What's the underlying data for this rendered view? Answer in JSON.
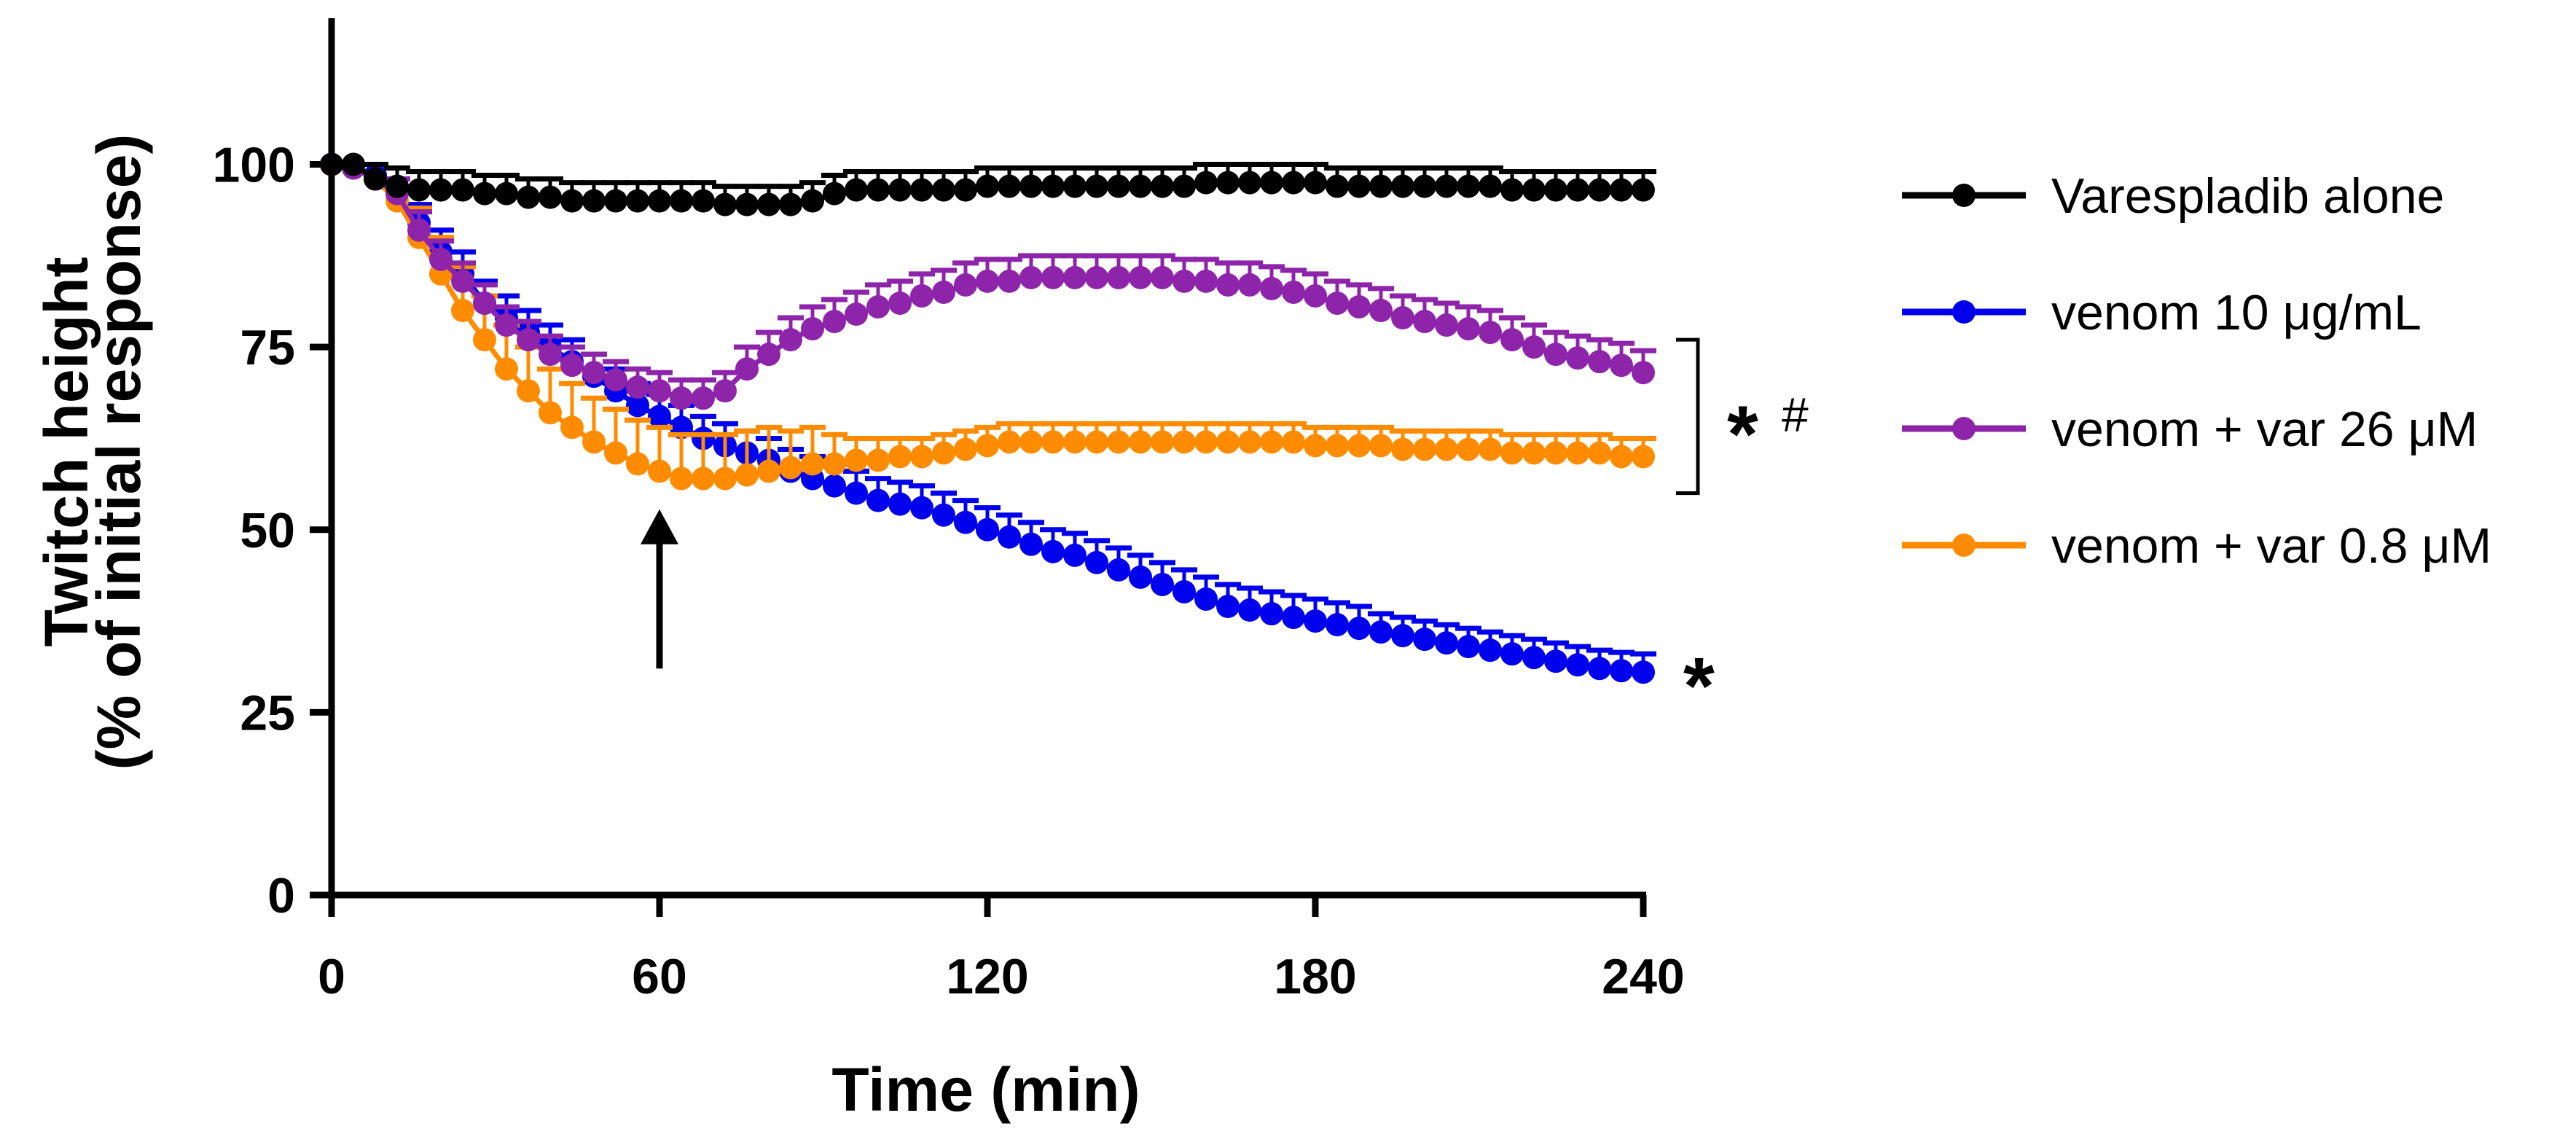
{
  "chart_data": {
    "type": "line",
    "title": "",
    "xlabel": "Time (min)",
    "ylabel": "Twitch height",
    "ylabel2": "(% of initial response)",
    "xlim": [
      0,
      240
    ],
    "ylim": [
      0,
      120
    ],
    "xticks": [
      0,
      60,
      120,
      180,
      240
    ],
    "yticks": [
      0,
      25,
      50,
      75,
      100
    ],
    "grid": false,
    "legend_position": "right",
    "x": [
      0,
      4,
      8,
      12,
      16,
      20,
      24,
      28,
      32,
      36,
      40,
      44,
      48,
      52,
      56,
      60,
      64,
      68,
      72,
      76,
      80,
      84,
      88,
      92,
      96,
      100,
      104,
      108,
      112,
      116,
      120,
      124,
      128,
      132,
      136,
      140,
      144,
      148,
      152,
      156,
      160,
      164,
      168,
      172,
      176,
      180,
      184,
      188,
      192,
      196,
      200,
      204,
      208,
      212,
      216,
      220,
      224,
      228,
      232,
      236,
      240
    ],
    "series": [
      {
        "name": "Varespladib alone",
        "color": "#000000",
        "values": [
          100,
          100,
          98,
          97,
          96.5,
          96.5,
          96.5,
          96,
          96,
          95.5,
          95.5,
          95,
          95,
          95,
          95,
          95,
          95,
          95,
          94.5,
          94.5,
          94.5,
          94.5,
          95,
          96,
          96.5,
          96.5,
          96.5,
          96.5,
          96.5,
          96.5,
          97,
          97,
          97,
          97,
          97,
          97,
          97,
          97,
          97,
          97,
          97.5,
          97.5,
          97.5,
          97.5,
          97.5,
          97.5,
          97,
          97,
          97,
          97,
          97,
          97,
          97,
          97,
          96.5,
          96.5,
          96.5,
          96.5,
          96.5,
          96.5,
          96.5
        ],
        "errors": [
          0,
          0,
          2,
          2.5,
          2.5,
          2.5,
          2.5,
          2.5,
          2.5,
          2.5,
          2.5,
          2.5,
          2.5,
          2.5,
          2.5,
          2.5,
          2.5,
          2.5,
          2.5,
          2.5,
          2.5,
          2.5,
          2.5,
          2.5,
          2.5,
          2.5,
          2.5,
          2.5,
          2.5,
          2.5,
          2.5,
          2.5,
          2.5,
          2.5,
          2.5,
          2.5,
          2.5,
          2.5,
          2.5,
          2.5,
          2.5,
          2.5,
          2.5,
          2.5,
          2.5,
          2.5,
          2.5,
          2.5,
          2.5,
          2.5,
          2.5,
          2.5,
          2.5,
          2.5,
          2.5,
          2.5,
          2.5,
          2.5,
          2.5,
          2.5,
          2.5
        ]
      },
      {
        "name": "venom 10 μg/mL",
        "color": "#0000ee",
        "values": [
          100,
          99.5,
          98.5,
          96,
          92,
          88,
          85,
          81,
          79,
          77,
          75,
          73,
          71,
          69,
          67,
          65.5,
          64,
          62.5,
          61.5,
          60.5,
          59.5,
          58,
          57,
          56,
          55,
          54,
          53.5,
          53,
          52,
          51,
          50,
          49,
          48,
          47,
          46.5,
          45.5,
          44.5,
          43.5,
          42.5,
          41.5,
          40.5,
          39.5,
          39,
          38.5,
          38,
          37.5,
          37,
          36.5,
          36,
          35.5,
          35,
          34.5,
          34,
          33.5,
          33,
          32.5,
          32,
          31.5,
          31,
          30.7,
          30.5
        ],
        "errors": [
          0,
          0,
          0,
          2,
          2.5,
          3,
          3,
          3,
          3,
          3,
          3,
          3,
          3,
          3,
          3,
          3,
          3,
          3,
          3,
          3,
          3,
          3,
          3,
          3,
          3,
          3,
          3,
          3,
          3,
          3,
          3,
          3,
          3,
          3,
          3,
          3,
          3,
          3,
          3,
          3,
          3,
          3,
          3,
          3,
          3,
          3,
          3,
          3,
          2.5,
          2.5,
          2.5,
          2.5,
          2.5,
          2.5,
          2.5,
          2.5,
          2.5,
          2.5,
          2.5,
          2.5,
          2.5
        ]
      },
      {
        "name": "venom + var 26 μM",
        "color": "#8e24aa",
        "values": [
          100,
          99.5,
          98,
          96,
          91,
          87,
          84,
          81,
          78,
          76,
          74,
          72.5,
          71.5,
          70.5,
          69.5,
          69,
          68,
          68,
          69,
          72,
          74,
          76,
          77.5,
          78.5,
          79.5,
          80.5,
          81,
          82,
          82.5,
          83.5,
          84,
          84,
          84.5,
          84.5,
          84.5,
          84.5,
          84.5,
          84.5,
          84.5,
          84,
          84,
          83.5,
          83.5,
          83,
          82.5,
          82,
          81,
          80.5,
          80,
          79,
          78.5,
          78,
          77.5,
          77,
          76,
          75,
          74,
          73.5,
          73,
          72.5,
          71.5
        ],
        "errors": [
          0,
          0,
          0,
          2,
          2.5,
          2.5,
          2.5,
          2.5,
          2.5,
          2.5,
          2.5,
          2.5,
          2.5,
          2.5,
          2.5,
          2.5,
          2.5,
          2.5,
          2.5,
          3,
          3,
          3,
          3,
          3,
          3,
          3,
          3,
          3,
          3,
          3,
          3,
          3,
          3,
          3,
          3,
          3,
          3,
          3,
          3,
          3,
          3,
          3,
          3,
          3,
          3,
          3,
          3,
          3,
          3,
          3,
          3,
          3,
          3,
          3,
          3,
          3,
          3,
          3,
          3,
          3,
          3
        ]
      },
      {
        "name": "venom + var 0.8 μM",
        "color": "#ff8c00",
        "values": [
          100,
          99.5,
          98,
          95,
          90,
          85,
          80,
          76,
          72,
          69,
          66,
          64,
          62,
          60.5,
          59,
          58,
          57,
          57,
          57,
          57.5,
          58,
          58.5,
          59,
          59,
          59.5,
          59.5,
          60,
          60,
          60.5,
          61,
          61.5,
          62,
          62,
          62,
          62,
          62,
          62,
          62,
          62,
          62,
          62,
          62,
          62,
          62,
          62,
          61.5,
          61.5,
          61.5,
          61.5,
          61,
          61,
          61,
          61,
          61,
          60.5,
          60.5,
          60.5,
          60.5,
          60.5,
          60,
          60
        ],
        "errors": [
          0,
          0,
          0,
          2,
          4,
          5,
          6,
          6,
          6,
          6,
          6,
          6,
          6,
          6,
          6,
          6,
          6,
          6,
          6,
          6,
          6,
          5,
          5,
          4,
          3,
          3,
          2.5,
          2.5,
          2.5,
          2.5,
          2.5,
          2.5,
          2.5,
          2.5,
          2.5,
          2.5,
          2.5,
          2.5,
          2.5,
          2.5,
          2.5,
          2.5,
          2.5,
          2.5,
          2.5,
          2.5,
          2.5,
          2.5,
          2.5,
          2.5,
          2.5,
          2.5,
          2.5,
          2.5,
          2.5,
          2.5,
          2.5,
          2.5,
          2.5,
          2.5,
          2.5
        ]
      }
    ],
    "annotations": {
      "arrow": {
        "x": 60,
        "y_from": 31,
        "y_to": 52,
        "label": ""
      },
      "bracket": {
        "y_top": 76,
        "y_bottom": 55
      },
      "bracket_marks": {
        "star": "*",
        "hash": "#"
      },
      "venom_mark": {
        "text": "*",
        "y": 31
      }
    }
  }
}
